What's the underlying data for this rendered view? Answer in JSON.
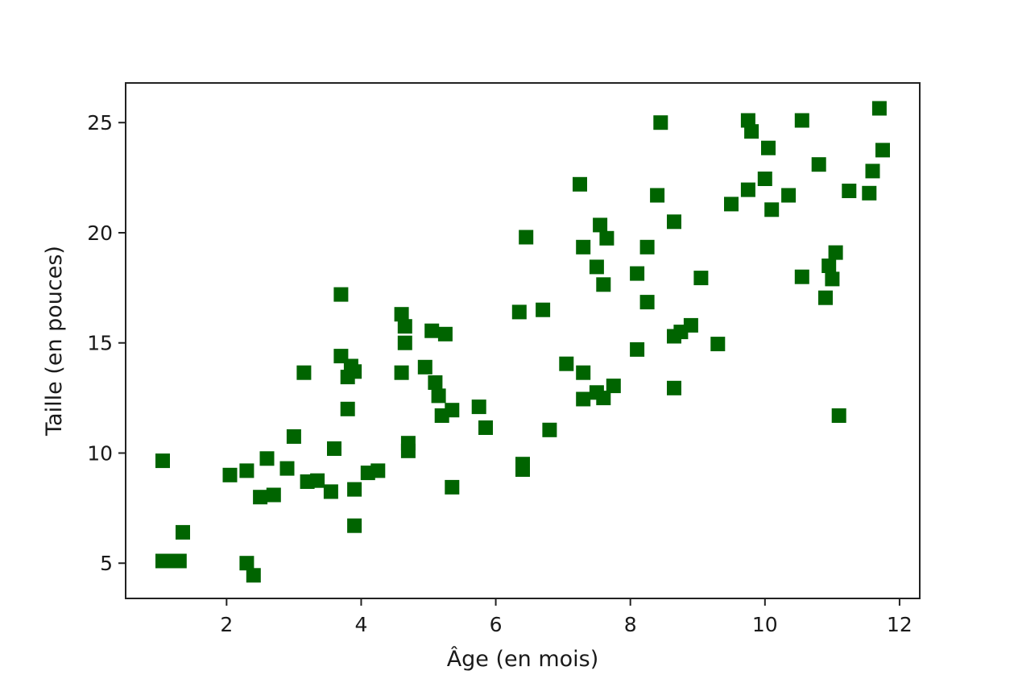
{
  "chart_data": {
    "type": "scatter",
    "xlabel": "Âge (en mois)",
    "ylabel": "Taille (en pouces)",
    "xlim": [
      0.5,
      12.3
    ],
    "ylim": [
      3.4,
      26.8
    ],
    "xticks": [
      2,
      4,
      6,
      8,
      10,
      12
    ],
    "yticks": [
      5,
      10,
      15,
      20,
      25
    ],
    "grid": false,
    "marker": "square",
    "color": "#006400",
    "points": [
      [
        1.05,
        9.65
      ],
      [
        1.05,
        5.1
      ],
      [
        1.2,
        5.1
      ],
      [
        1.3,
        5.1
      ],
      [
        1.35,
        6.4
      ],
      [
        2.05,
        9.0
      ],
      [
        2.3,
        9.2
      ],
      [
        2.3,
        5.0
      ],
      [
        2.4,
        4.45
      ],
      [
        2.5,
        8.0
      ],
      [
        2.6,
        9.75
      ],
      [
        2.7,
        8.1
      ],
      [
        2.9,
        9.3
      ],
      [
        3.0,
        10.75
      ],
      [
        3.15,
        13.65
      ],
      [
        3.2,
        8.7
      ],
      [
        3.35,
        8.75
      ],
      [
        3.55,
        8.25
      ],
      [
        3.6,
        10.2
      ],
      [
        3.7,
        17.2
      ],
      [
        3.7,
        14.4
      ],
      [
        3.8,
        12.0
      ],
      [
        3.8,
        13.45
      ],
      [
        3.85,
        13.95
      ],
      [
        3.9,
        13.7
      ],
      [
        3.9,
        8.35
      ],
      [
        3.9,
        6.7
      ],
      [
        4.1,
        9.1
      ],
      [
        4.25,
        9.2
      ],
      [
        4.6,
        16.3
      ],
      [
        4.6,
        13.65
      ],
      [
        4.65,
        15.75
      ],
      [
        4.65,
        15.0
      ],
      [
        4.7,
        10.1
      ],
      [
        4.7,
        10.45
      ],
      [
        4.95,
        13.9
      ],
      [
        5.05,
        15.55
      ],
      [
        5.1,
        13.2
      ],
      [
        5.15,
        12.6
      ],
      [
        5.2,
        11.7
      ],
      [
        5.25,
        15.4
      ],
      [
        5.35,
        11.95
      ],
      [
        5.35,
        8.45
      ],
      [
        5.75,
        12.1
      ],
      [
        5.85,
        11.15
      ],
      [
        6.35,
        16.4
      ],
      [
        6.4,
        9.5
      ],
      [
        6.4,
        9.25
      ],
      [
        6.45,
        19.8
      ],
      [
        6.7,
        16.5
      ],
      [
        6.8,
        11.05
      ],
      [
        7.05,
        14.05
      ],
      [
        7.25,
        22.2
      ],
      [
        7.3,
        19.35
      ],
      [
        7.3,
        13.65
      ],
      [
        7.3,
        12.45
      ],
      [
        7.5,
        12.75
      ],
      [
        7.5,
        18.45
      ],
      [
        7.55,
        20.35
      ],
      [
        7.6,
        17.65
      ],
      [
        7.6,
        12.5
      ],
      [
        7.65,
        19.75
      ],
      [
        7.75,
        13.05
      ],
      [
        8.1,
        18.15
      ],
      [
        8.1,
        14.7
      ],
      [
        8.25,
        19.35
      ],
      [
        8.25,
        16.85
      ],
      [
        8.4,
        21.7
      ],
      [
        8.45,
        25.0
      ],
      [
        8.65,
        20.5
      ],
      [
        8.65,
        12.95
      ],
      [
        8.65,
        15.3
      ],
      [
        8.75,
        15.5
      ],
      [
        8.9,
        15.8
      ],
      [
        9.05,
        17.95
      ],
      [
        9.3,
        14.95
      ],
      [
        9.5,
        21.3
      ],
      [
        9.75,
        21.95
      ],
      [
        9.75,
        25.1
      ],
      [
        9.8,
        24.6
      ],
      [
        10.0,
        22.45
      ],
      [
        10.05,
        23.85
      ],
      [
        10.1,
        21.05
      ],
      [
        10.35,
        21.7
      ],
      [
        10.55,
        25.1
      ],
      [
        10.55,
        18.0
      ],
      [
        10.8,
        23.1
      ],
      [
        10.9,
        17.05
      ],
      [
        10.95,
        18.5
      ],
      [
        11.0,
        17.9
      ],
      [
        11.05,
        19.1
      ],
      [
        11.1,
        11.7
      ],
      [
        11.25,
        21.9
      ],
      [
        11.55,
        21.8
      ],
      [
        11.6,
        22.8
      ],
      [
        11.7,
        25.65
      ],
      [
        11.75,
        23.75
      ]
    ]
  }
}
